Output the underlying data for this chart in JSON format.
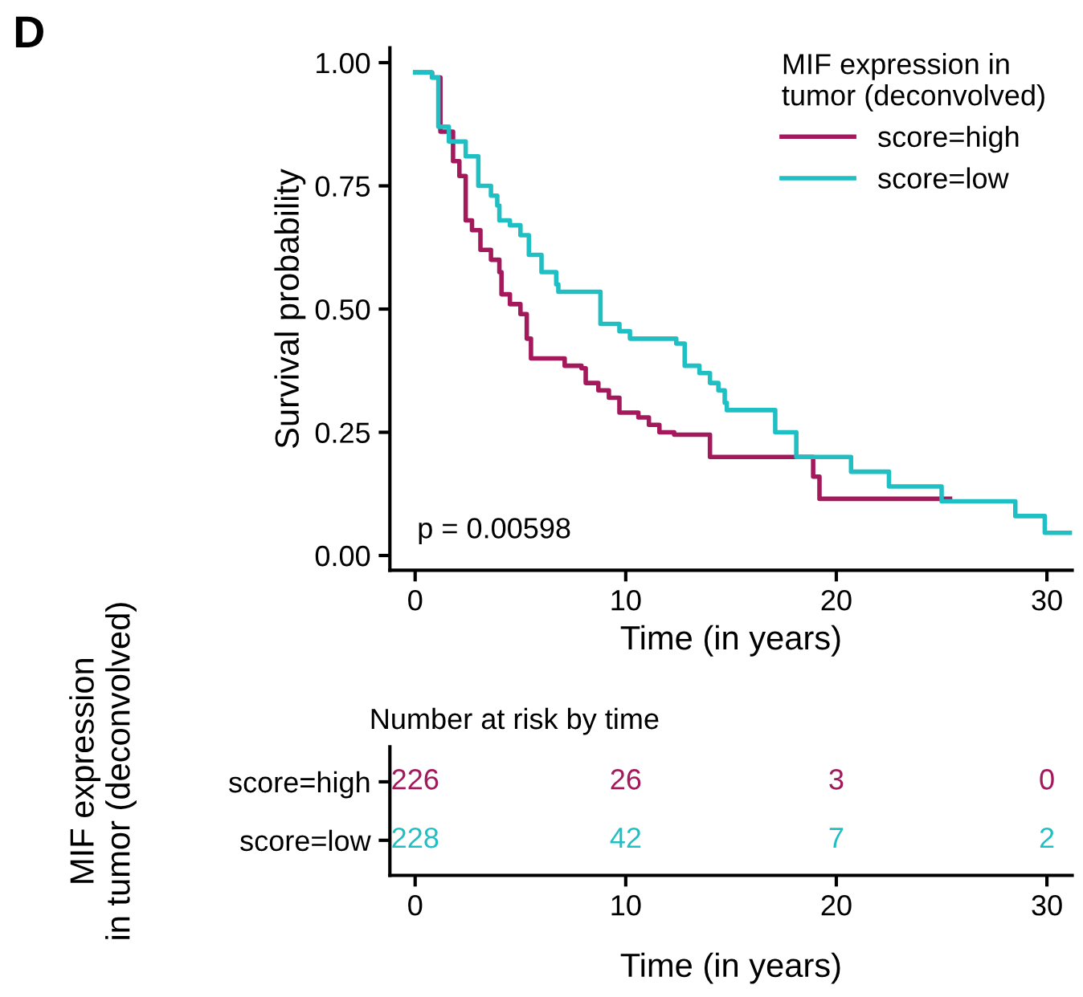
{
  "chart_data": [
    {
      "type": "step",
      "ylabel": "Survival probability",
      "xlabel": "Time (in years)",
      "legend_title": "MIF expression in\ntumor (deconvolved)",
      "legend": "top right",
      "grid": false,
      "xlim": [
        -1.2,
        31.2
      ],
      "xticks": [
        0,
        10,
        20,
        30
      ],
      "ylim": [
        -0.03,
        1.03
      ],
      "yticks": [
        {
          "value": 0,
          "label": "0.00"
        },
        {
          "value": 0.25,
          "label": "0.25"
        },
        {
          "value": 0.5,
          "label": "0.50"
        },
        {
          "value": 0.75,
          "label": "0.75"
        },
        {
          "value": 1,
          "label": "1.00"
        }
      ],
      "annotations": [
        "D",
        "p = 0.00598"
      ],
      "series": [
        {
          "name": "score=high",
          "color": "#a3195b",
          "x": [
            0,
            0.8,
            1.2,
            1.8,
            2.1,
            2.4,
            2.7,
            3.1,
            3.6,
            4.0,
            4.1,
            4.5,
            5.0,
            5.3,
            5.5,
            7.1,
            7.9,
            8.1,
            8.7,
            9.2,
            9.7,
            10.6,
            11.1,
            11.6,
            12.3,
            14.0,
            18.9,
            19.2,
            25.4
          ],
          "values": [
            0.98,
            0.97,
            0.86,
            0.8,
            0.77,
            0.68,
            0.66,
            0.62,
            0.6,
            0.575,
            0.53,
            0.51,
            0.49,
            0.44,
            0.4,
            0.385,
            0.38,
            0.35,
            0.335,
            0.32,
            0.29,
            0.28,
            0.265,
            0.25,
            0.245,
            0.2,
            0.16,
            0.115,
            0.115
          ]
        },
        {
          "name": "score=low",
          "color": "#1fbfc4",
          "x": [
            0,
            0.8,
            1.1,
            1.6,
            2.4,
            3.0,
            3.6,
            3.9,
            4.0,
            4.5,
            5.0,
            5.4,
            6.0,
            6.7,
            6.8,
            8.8,
            9.7,
            10.2,
            12.4,
            12.8,
            13.5,
            14.0,
            14.4,
            14.7,
            14.8,
            17.1,
            18.1,
            20.7,
            22.5,
            25.0,
            28.5,
            29.9,
            31.1
          ],
          "values": [
            0.98,
            0.97,
            0.87,
            0.84,
            0.81,
            0.75,
            0.73,
            0.71,
            0.68,
            0.67,
            0.65,
            0.61,
            0.575,
            0.55,
            0.535,
            0.47,
            0.455,
            0.44,
            0.43,
            0.385,
            0.37,
            0.35,
            0.335,
            0.31,
            0.295,
            0.25,
            0.2,
            0.17,
            0.14,
            0.11,
            0.08,
            0.046,
            0.046
          ]
        }
      ]
    },
    {
      "type": "heatmap",
      "title": "Number at risk by time",
      "xlabel": "Time (in years)",
      "ylabel": "MIF expression\nin tumor (deconvolved)",
      "categories": [
        "0",
        "10",
        "20",
        "30"
      ],
      "y_categories": [
        "score=high",
        "score=low"
      ],
      "colors": [
        "#a3195b",
        "#1fbfc4"
      ],
      "cells": [
        [
          226,
          26,
          3,
          0
        ],
        [
          228,
          42,
          7,
          2
        ]
      ],
      "data_labels": true
    }
  ]
}
